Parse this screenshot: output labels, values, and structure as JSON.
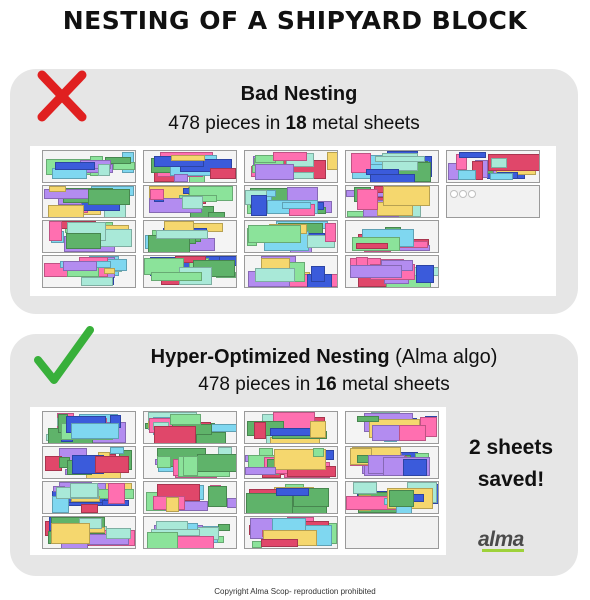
{
  "title": "NESTING OF A SHIPYARD BLOCK",
  "bad": {
    "heading": "Bad Nesting",
    "pieces_text": "478 pieces in",
    "sheets_count": "18",
    "sheets_word": "metal sheets",
    "icon": "cross-icon"
  },
  "good": {
    "heading": "Hyper-Optimized Nesting",
    "algo_note": "(Alma algo)",
    "pieces_text": "478 pieces in",
    "sheets_count": "16",
    "sheets_word": "metal sheets",
    "icon": "check-icon",
    "saved_line1": "2 sheets",
    "saved_line2": "saved!"
  },
  "logo_text": "alma",
  "copyright": "Copyright Alma Scop- reproduction prohibited",
  "colors": {
    "cross": "#e02020",
    "check": "#38b03a",
    "panel": "#e6e6e6",
    "palette": [
      "#3b5bdb",
      "#ff6fb0",
      "#8be39a",
      "#7fd7f0",
      "#f5d76e",
      "#e0476a",
      "#b38cf0",
      "#5fb36a",
      "#a9e9d8",
      "#ffffff"
    ]
  }
}
